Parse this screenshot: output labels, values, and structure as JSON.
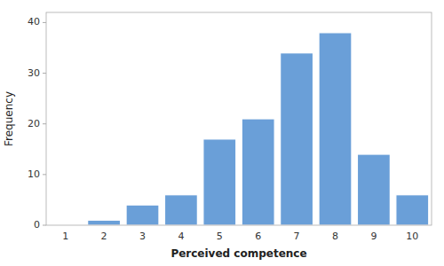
{
  "chart_data": {
    "type": "bar",
    "categories": [
      1,
      2,
      3,
      4,
      5,
      6,
      7,
      8,
      9,
      10
    ],
    "values": [
      0,
      1,
      4,
      6,
      17,
      21,
      34,
      38,
      14,
      6
    ],
    "color": "#6a9fd8",
    "xlabel": "Perceived competence",
    "ylabel": "Frequency",
    "ylim": [
      0,
      42
    ],
    "yticks": [
      0,
      10,
      20,
      30,
      40
    ],
    "grid": false
  }
}
